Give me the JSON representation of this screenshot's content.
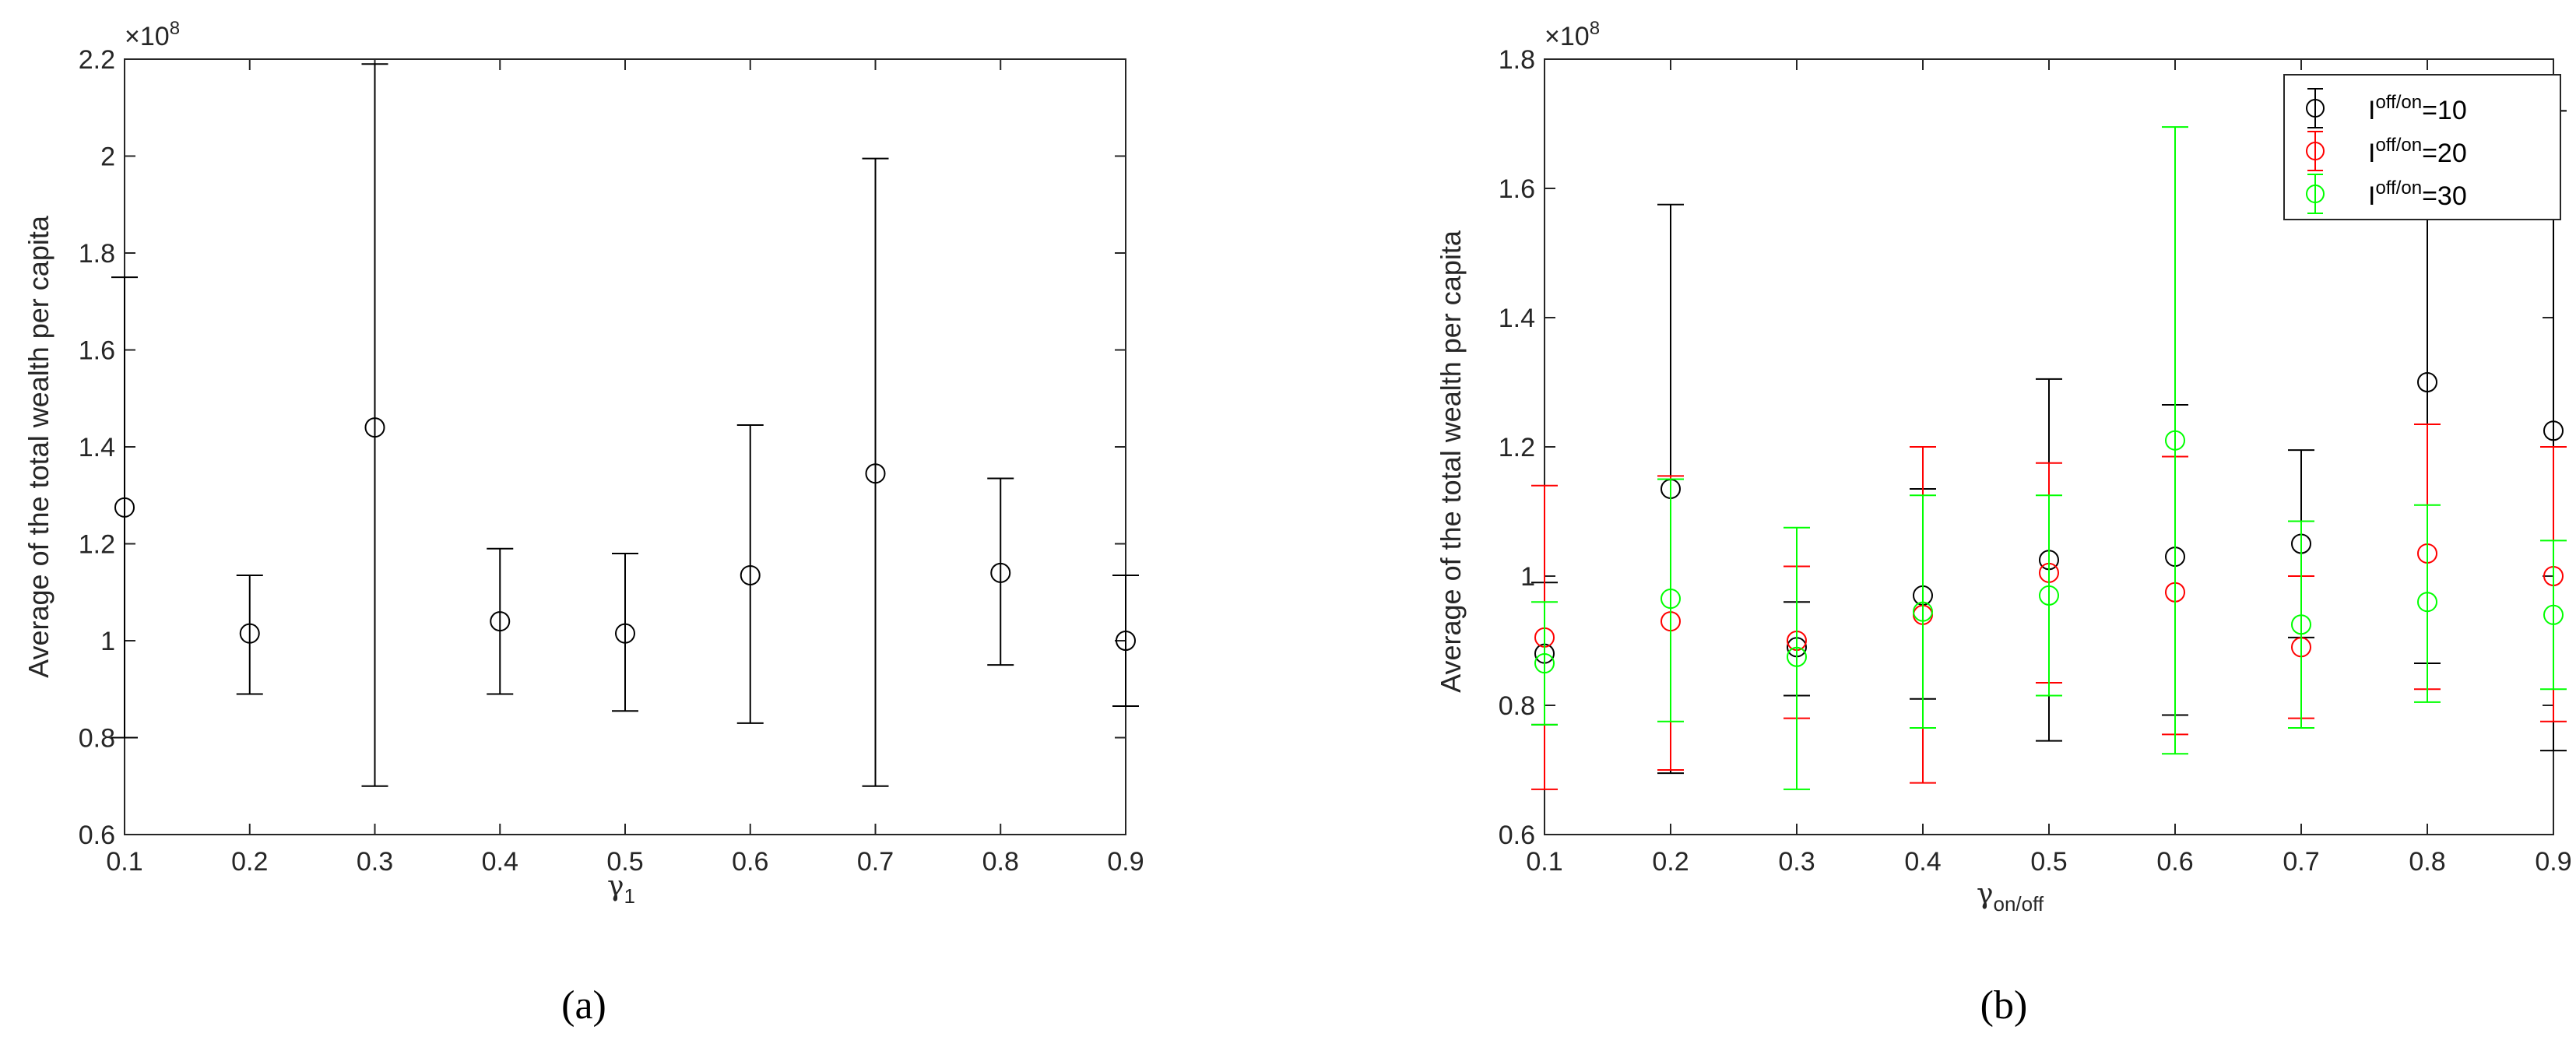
{
  "chart_data": [
    {
      "type": "scatter",
      "panel_label": "(a)",
      "xlabel": "γ",
      "xlabel_sub": "1",
      "ylabel": "Average of the total wealth per capita",
      "y_exponent": "×10",
      "y_exponent_power": "8",
      "xlim": [
        0.1,
        0.9
      ],
      "ylim": [
        0.6,
        2.2
      ],
      "xticks": [
        "0.1",
        "0.2",
        "0.3",
        "0.4",
        "0.5",
        "0.6",
        "0.7",
        "0.8",
        "0.9"
      ],
      "yticks": [
        "0.6",
        "0.8",
        "1",
        "1.2",
        "1.4",
        "1.6",
        "1.8",
        "2",
        "2.2"
      ],
      "grid": false,
      "legend": null,
      "series": [
        {
          "color": "#000000",
          "marker": "circle",
          "x": [
            0.1,
            0.2,
            0.3,
            0.4,
            0.5,
            0.6,
            0.7,
            0.8,
            0.9
          ],
          "y": [
            1.275,
            1.015,
            1.44,
            1.04,
            1.015,
            1.135,
            1.345,
            1.14,
            1.0
          ],
          "lower": [
            0.8,
            0.89,
            0.7,
            0.89,
            0.855,
            0.83,
            0.7,
            0.95,
            0.865
          ],
          "upper": [
            1.75,
            1.135,
            2.19,
            1.19,
            1.18,
            1.445,
            1.995,
            1.335,
            1.135
          ]
        }
      ]
    },
    {
      "type": "scatter",
      "panel_label": "(b)",
      "xlabel": "γ",
      "xlabel_sub": "on/off",
      "ylabel": "Average of the total wealth per capita",
      "y_exponent": "×10",
      "y_exponent_power": "8",
      "xlim": [
        0.1,
        0.9
      ],
      "ylim": [
        0.6,
        1.8
      ],
      "xticks": [
        "0.1",
        "0.2",
        "0.3",
        "0.4",
        "0.5",
        "0.6",
        "0.7",
        "0.8",
        "0.9"
      ],
      "yticks": [
        "0.6",
        "0.8",
        "1",
        "1.2",
        "1.4",
        "1.6",
        "1.8"
      ],
      "grid": false,
      "legend": "top-right",
      "series": [
        {
          "name": "I",
          "name_sup": "off/on",
          "name_suffix": "=10",
          "color": "#000000",
          "marker": "circle",
          "x": [
            0.1,
            0.2,
            0.3,
            0.4,
            0.5,
            0.6,
            0.7,
            0.8,
            0.9
          ],
          "y": [
            0.88,
            1.135,
            0.89,
            0.97,
            1.025,
            1.03,
            1.05,
            1.3,
            1.225
          ],
          "lower": [
            0.77,
            0.695,
            0.815,
            0.81,
            0.745,
            0.785,
            0.905,
            0.865,
            0.73
          ],
          "upper": [
            0.99,
            1.575,
            0.96,
            1.135,
            1.305,
            1.265,
            1.195,
            1.74,
            1.72
          ]
        },
        {
          "name": "I",
          "name_sup": "off/on",
          "name_suffix": "=20",
          "color": "#ff0000",
          "marker": "circle",
          "x": [
            0.1,
            0.2,
            0.3,
            0.4,
            0.5,
            0.6,
            0.7,
            0.8,
            0.9
          ],
          "y": [
            0.905,
            0.93,
            0.9,
            0.94,
            1.005,
            0.975,
            0.89,
            1.035,
            1.0
          ],
          "lower": [
            0.67,
            0.7,
            0.78,
            0.68,
            0.835,
            0.755,
            0.78,
            0.825,
            0.775
          ],
          "upper": [
            1.14,
            1.155,
            1.015,
            1.2,
            1.175,
            1.185,
            1.0,
            1.235,
            1.2
          ]
        },
        {
          "name": "I",
          "name_sup": "off/on",
          "name_suffix": "=30",
          "color": "#00ff00",
          "marker": "circle",
          "x": [
            0.1,
            0.2,
            0.3,
            0.4,
            0.5,
            0.6,
            0.7,
            0.8,
            0.9
          ],
          "y": [
            0.865,
            0.965,
            0.875,
            0.945,
            0.97,
            1.21,
            0.925,
            0.96,
            0.94
          ],
          "lower": [
            0.77,
            0.775,
            0.67,
            0.765,
            0.815,
            0.725,
            0.765,
            0.805,
            0.825
          ],
          "upper": [
            0.96,
            1.15,
            1.075,
            1.125,
            1.125,
            1.695,
            1.085,
            1.11,
            1.055
          ]
        }
      ]
    }
  ]
}
